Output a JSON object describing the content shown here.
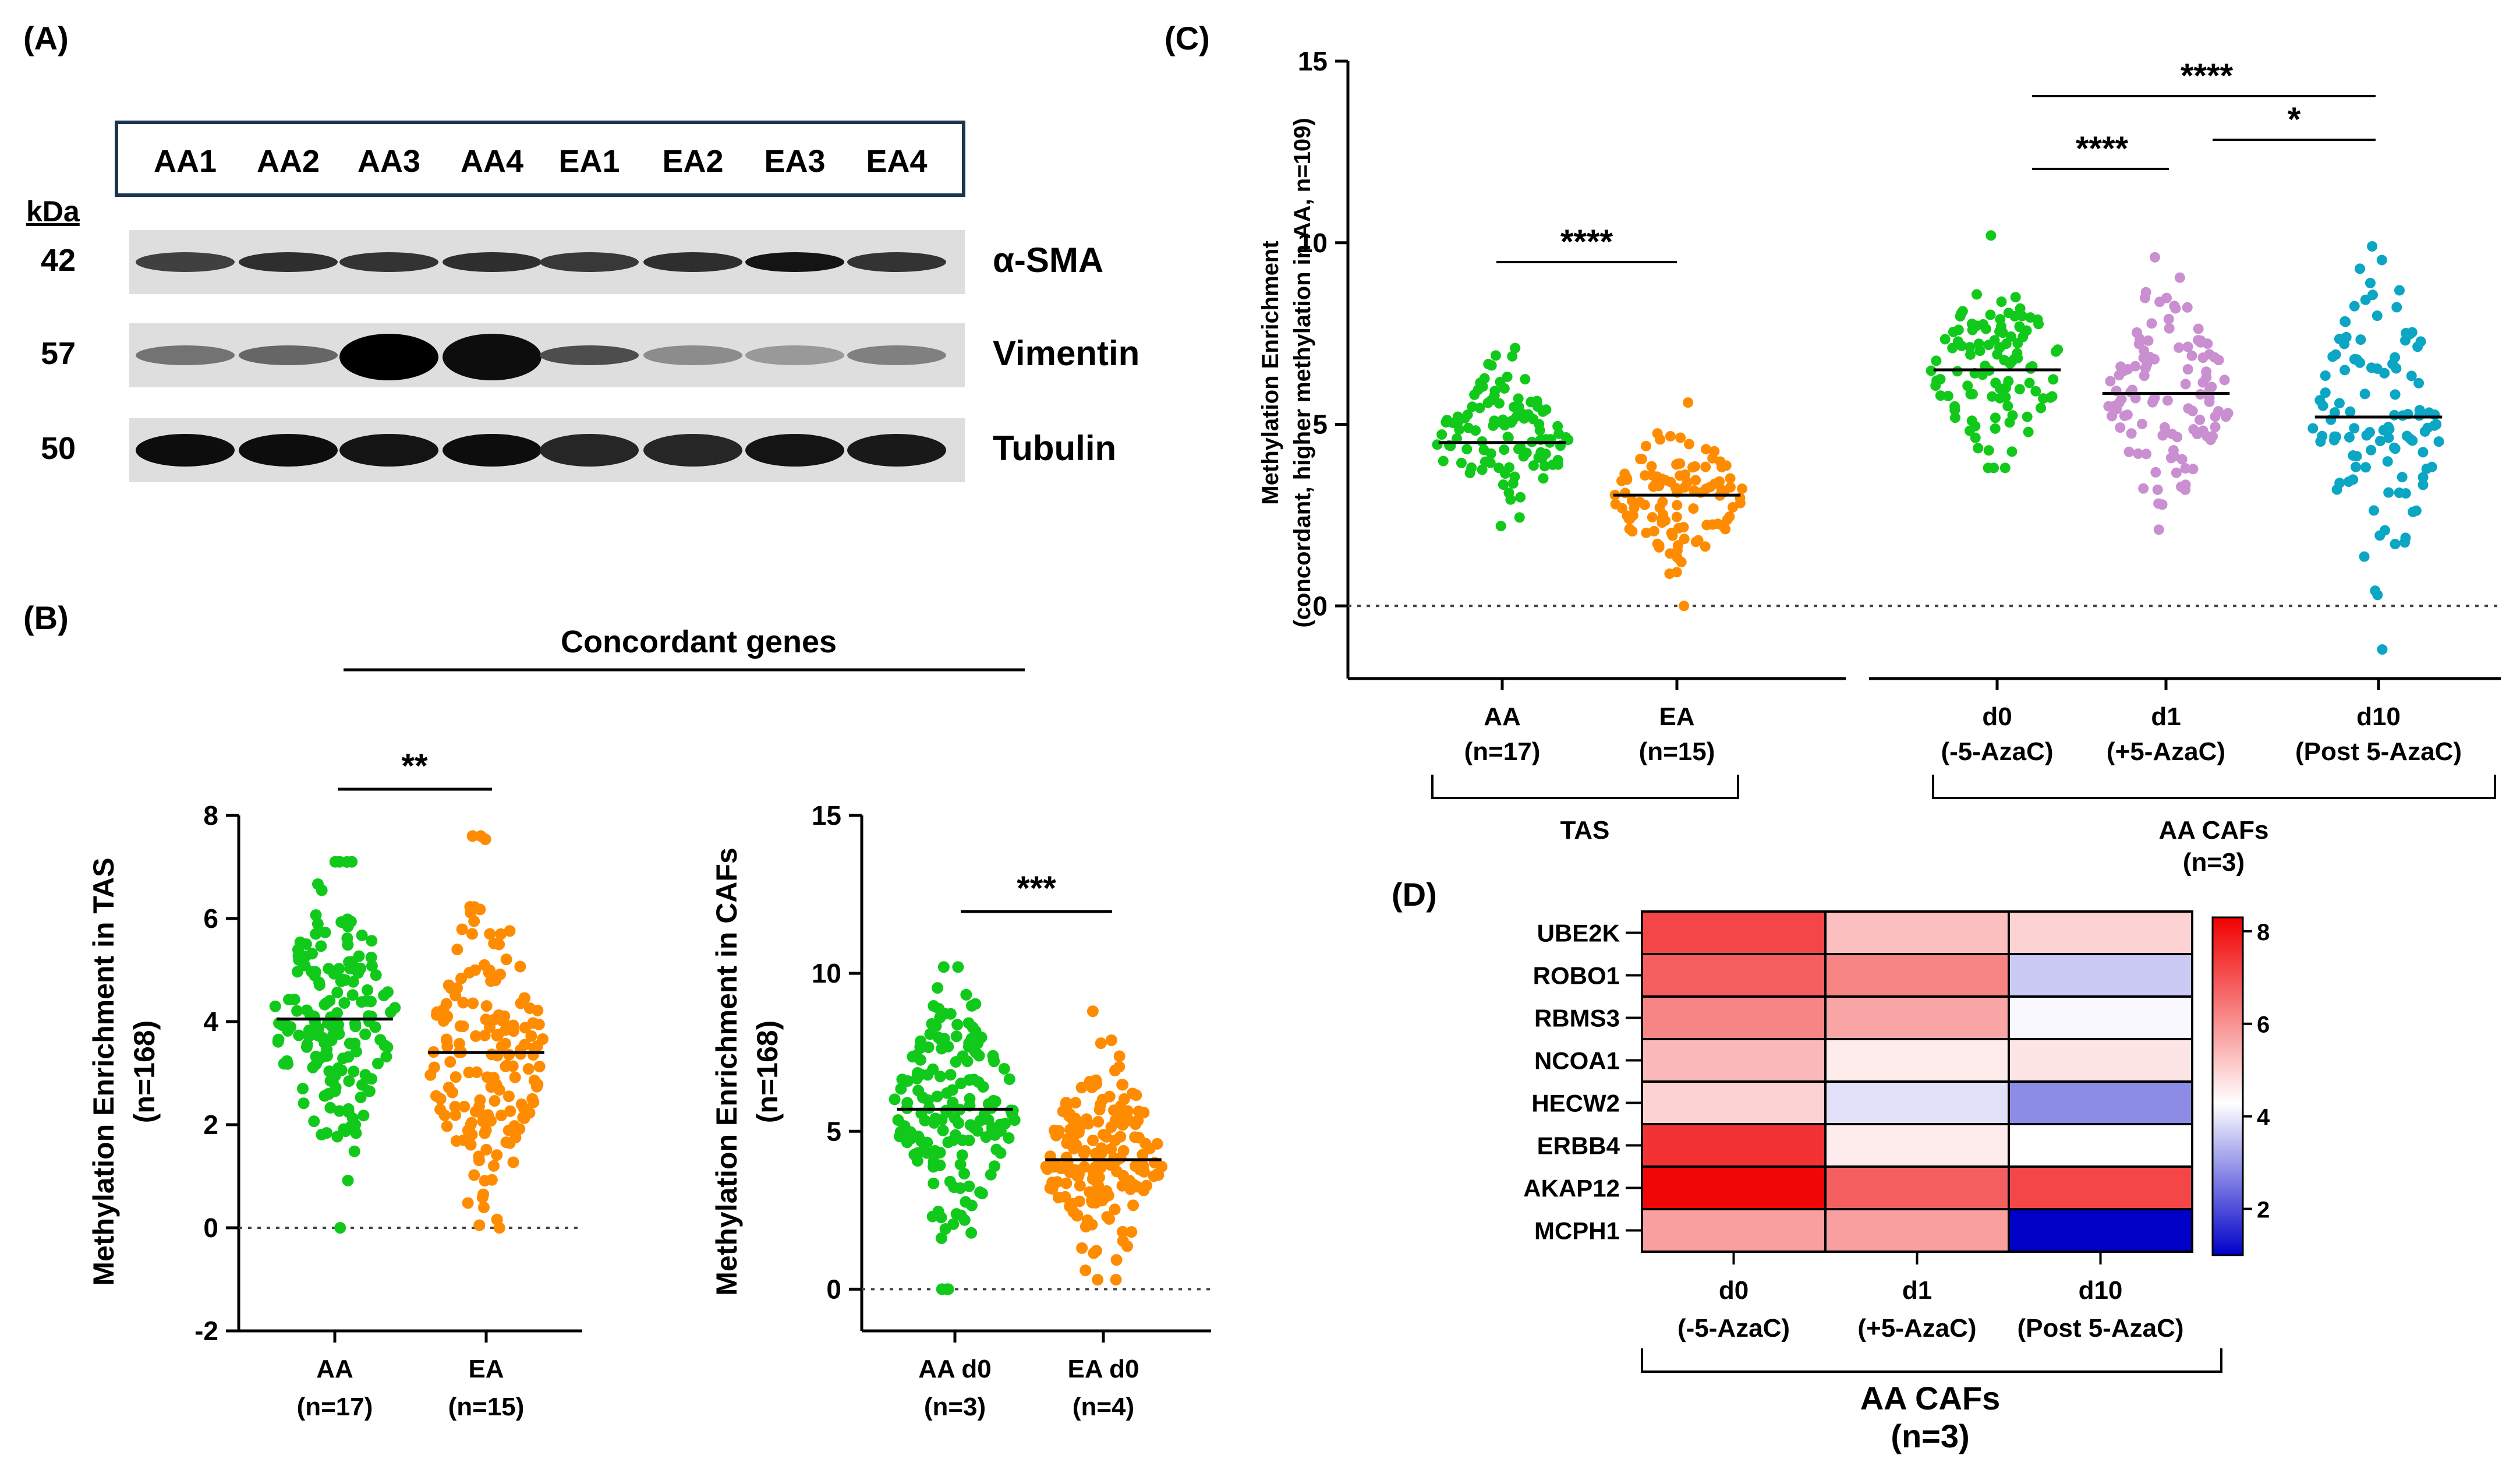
{
  "panel_labels": {
    "a": "(A)",
    "b": "(B)",
    "c": "(C)",
    "d": "(D)"
  },
  "panel_a": {
    "samples": [
      "AA1",
      "AA2",
      "AA3",
      "AA4",
      "EA1",
      "EA2",
      "EA3",
      "EA4"
    ],
    "kda_label": "kDa",
    "blots": [
      {
        "kda": "42",
        "protein": "α-SMA",
        "intensity": [
          0.75,
          0.82,
          0.8,
          0.82,
          0.78,
          0.82,
          0.92,
          0.8
        ]
      },
      {
        "kda": "57",
        "protein": "Vimentin",
        "intensity": [
          0.55,
          0.6,
          1.0,
          0.95,
          0.7,
          0.45,
          0.4,
          0.5
        ]
      },
      {
        "kda": "50",
        "protein": "Tubulin",
        "intensity": [
          0.95,
          0.95,
          0.92,
          0.95,
          0.85,
          0.85,
          0.92,
          0.9
        ]
      }
    ]
  },
  "panel_b": {
    "header": "Concordant genes",
    "tas": {
      "ylabel": "Methylation Enrichment in TAS",
      "ylabel2": "(n=168)",
      "yticks": [
        "-2",
        "0",
        "2",
        "4",
        "6",
        "8"
      ],
      "cat1": "AA",
      "cat1n": "(n=17)",
      "cat2": "EA",
      "cat2n": "(n=15)",
      "sig": "**"
    },
    "cafs": {
      "ylabel": "Methylation Enrichment in CAFs",
      "ylabel2": "(n=168)",
      "yticks": [
        "0",
        "5",
        "10",
        "15"
      ],
      "cat1": "AA d0",
      "cat1n": "(n=3)",
      "cat2": "EA d0",
      "cat2n": "(n=4)",
      "sig": "***"
    }
  },
  "panel_c": {
    "ylabel": "Methylation Enrichment",
    "ylabel2": "(concordant, higher methylation in AA, n=109)",
    "yticks": [
      "0",
      "5",
      "10",
      "15"
    ],
    "cats": [
      {
        "l1": "AA",
        "l2": "(n=17)"
      },
      {
        "l1": "EA",
        "l2": "(n=15)"
      },
      {
        "l1": "d0",
        "l2": "(-5-AzaC)"
      },
      {
        "l1": "d1",
        "l2": "(+5-AzaC)"
      },
      {
        "l1": "d10",
        "l2": "(Post 5-AzaC)"
      }
    ],
    "group1": "TAS",
    "group2": "AA CAFs",
    "group2n": "(n=3)",
    "sig_tas": "****",
    "sig_d0_d1": "****",
    "sig_d0_d10": "****",
    "sig_d1_d10": "*"
  },
  "panel_d": {
    "genes": [
      "UBE2K",
      "ROBO1",
      "RBMS3",
      "NCOA1",
      "HECW2",
      "ERBB4",
      "AKAP12",
      "MCPH1"
    ],
    "cols": [
      {
        "l1": "d0",
        "l2": "(-5-AzaC)"
      },
      {
        "l1": "d1",
        "l2": "(+5-AzaC)"
      },
      {
        "l1": "d10",
        "l2": "(Post 5-AzaC)"
      }
    ],
    "group": "AA CAFs",
    "group_n": "(n=3)",
    "scale_ticks": [
      "2",
      "4",
      "6",
      "8"
    ]
  },
  "chart_data": [
    {
      "type": "scatter",
      "panel": "B-left",
      "ylabel": "Methylation Enrichment in TAS (n=168)",
      "ylim": [
        -2,
        8
      ],
      "categories": [
        "AA (n=17)",
        "EA (n=15)"
      ],
      "series": [
        {
          "name": "AA",
          "mean": 4.05,
          "range": [
            0,
            7.1
          ],
          "color": "#11c91a"
        },
        {
          "name": "EA",
          "mean": 3.4,
          "range": [
            0,
            7.6
          ],
          "color": "#ff8c00"
        }
      ],
      "annotation": "**"
    },
    {
      "type": "scatter",
      "panel": "B-right",
      "ylabel": "Methylation Enrichment in CAFs (n=168)",
      "ylim": [
        -1,
        15
      ],
      "categories": [
        "AA d0 (n=3)",
        "EA d0 (n=4)"
      ],
      "series": [
        {
          "name": "AA d0",
          "mean": 5.7,
          "range": [
            0,
            10.2
          ],
          "color": "#11c91a"
        },
        {
          "name": "EA d0",
          "mean": 4.1,
          "range": [
            0.3,
            8.8
          ],
          "color": "#ff8c00"
        }
      ],
      "annotation": "***"
    },
    {
      "type": "scatter",
      "panel": "C",
      "ylabel": "Methylation Enrichment (concordant, higher methylation in AA, n=109)",
      "ylim": [
        -2,
        15
      ],
      "categories": [
        "AA (n=17)",
        "EA (n=15)",
        "d0 (-5-AzaC)",
        "d1 (+5-AzaC)",
        "d10 (Post 5-AzaC)"
      ],
      "series": [
        {
          "name": "AA",
          "mean": 4.5,
          "range": [
            2.2,
            7.1
          ],
          "color": "#11c91a"
        },
        {
          "name": "EA",
          "mean": 3.05,
          "range": [
            0,
            5.6
          ],
          "color": "#ff8c00"
        },
        {
          "name": "d0",
          "mean": 6.5,
          "range": [
            3.8,
            10.2
          ],
          "color": "#11c91a"
        },
        {
          "name": "d1",
          "mean": 5.85,
          "range": [
            2.1,
            9.6
          ],
          "color": "#c98fd0"
        },
        {
          "name": "d10",
          "mean": 5.2,
          "range": [
            -1.2,
            9.9
          ],
          "color": "#0aa6c4"
        }
      ],
      "annotations": [
        "****",
        "****",
        "****",
        "*"
      ]
    },
    {
      "type": "heatmap",
      "panel": "D",
      "rows": [
        "UBE2K",
        "ROBO1",
        "RBMS3",
        "NCOA1",
        "HECW2",
        "ERBB4",
        "AKAP12",
        "MCPH1"
      ],
      "columns": [
        "d0 (-5-AzaC)",
        "d1 (+5-AzaC)",
        "d10 (Post 5-AzaC)"
      ],
      "values": [
        [
          7.2,
          5.3,
          5.0
        ],
        [
          6.8,
          6.2,
          3.6
        ],
        [
          6.2,
          5.7,
          4.2
        ],
        [
          5.4,
          4.6,
          4.7
        ],
        [
          5.0,
          3.9,
          2.8
        ],
        [
          7.5,
          4.6,
          4.3
        ],
        [
          8.2,
          6.8,
          7.2
        ],
        [
          5.8,
          5.8,
          0.9
        ]
      ],
      "scale": [
        1,
        8.3
      ],
      "ticks": [
        2,
        4,
        6,
        8
      ]
    }
  ]
}
